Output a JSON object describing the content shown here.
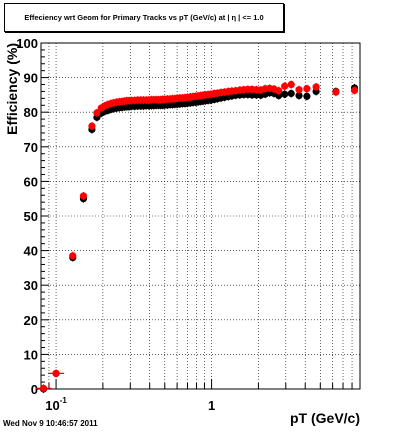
{
  "title": "Effeciency wrt Geom for Primary Tracks vs pT (GeV/c) at | η | <= 1.0",
  "timestamp": "Wed Nov  9 10:46:57 2011",
  "colors": {
    "series_black": "#000000",
    "series_red": "#ff0000",
    "grid": "#000000"
  },
  "chart_data": {
    "type": "scatter",
    "title": "Effeciency wrt Geom for Primary Tracks vs pT (GeV/c) at | η | <= 1.0",
    "xlabel": "pT (GeV/c)",
    "ylabel": "Efficiency (%)",
    "x_scale": "log",
    "xlim": [
      0.08,
      9.0
    ],
    "ylim": [
      0,
      100
    ],
    "x_tick_labels": [
      {
        "value": 0.1,
        "base": "10",
        "exp": "-1"
      },
      {
        "value": 1,
        "base": "1",
        "exp": ""
      }
    ],
    "y_ticks": [
      0,
      10,
      20,
      30,
      40,
      50,
      60,
      70,
      80,
      90,
      100
    ],
    "grid": true,
    "series": [
      {
        "color": "#000000",
        "points": [
          [
            0.083,
            0.0
          ],
          [
            0.1,
            4.5
          ],
          [
            0.128,
            38.0
          ],
          [
            0.15,
            55.0
          ],
          [
            0.17,
            75.0
          ],
          [
            0.183,
            78.5
          ],
          [
            0.195,
            79.7
          ],
          [
            0.205,
            80.2
          ],
          [
            0.215,
            80.5
          ],
          [
            0.225,
            80.8
          ],
          [
            0.235,
            81.0
          ],
          [
            0.245,
            81.2
          ],
          [
            0.255,
            81.3
          ],
          [
            0.265,
            81.4
          ],
          [
            0.275,
            81.5
          ],
          [
            0.285,
            81.6
          ],
          [
            0.295,
            81.6
          ],
          [
            0.305,
            81.7
          ],
          [
            0.32,
            81.7
          ],
          [
            0.335,
            81.8
          ],
          [
            0.35,
            81.8
          ],
          [
            0.365,
            81.8
          ],
          [
            0.38,
            81.9
          ],
          [
            0.395,
            81.9
          ],
          [
            0.41,
            81.9
          ],
          [
            0.425,
            81.9
          ],
          [
            0.44,
            82.0
          ],
          [
            0.455,
            82.0
          ],
          [
            0.47,
            82.0
          ],
          [
            0.485,
            82.0
          ],
          [
            0.5,
            82.1
          ],
          [
            0.52,
            82.1
          ],
          [
            0.54,
            82.2
          ],
          [
            0.56,
            82.2
          ],
          [
            0.58,
            82.3
          ],
          [
            0.6,
            82.3
          ],
          [
            0.625,
            82.4
          ],
          [
            0.65,
            82.5
          ],
          [
            0.675,
            82.5
          ],
          [
            0.7,
            82.6
          ],
          [
            0.73,
            82.7
          ],
          [
            0.76,
            82.8
          ],
          [
            0.79,
            82.9
          ],
          [
            0.82,
            83.0
          ],
          [
            0.85,
            83.1
          ],
          [
            0.88,
            83.2
          ],
          [
            0.91,
            83.3
          ],
          [
            0.95,
            83.4
          ],
          [
            0.99,
            83.5
          ],
          [
            1.04,
            83.7
          ],
          [
            1.09,
            83.9
          ],
          [
            1.15,
            84.1
          ],
          [
            1.21,
            84.3
          ],
          [
            1.28,
            84.5
          ],
          [
            1.35,
            84.7
          ],
          [
            1.43,
            84.9
          ],
          [
            1.52,
            85.0
          ],
          [
            1.61,
            85.1
          ],
          [
            1.71,
            85.1
          ],
          [
            1.82,
            85.0
          ],
          [
            1.94,
            85.0
          ],
          [
            2.07,
            84.9
          ],
          [
            2.21,
            85.2
          ],
          [
            2.36,
            85.6
          ],
          [
            2.52,
            85.4
          ],
          [
            2.7,
            84.8
          ],
          [
            2.95,
            85.2
          ],
          [
            3.25,
            85.4
          ],
          [
            3.65,
            84.8
          ],
          [
            4.1,
            84.6
          ],
          [
            4.7,
            86.0
          ],
          [
            6.3,
            86.0
          ],
          [
            8.3,
            87.0
          ]
        ]
      },
      {
        "color": "#ff0000",
        "points": [
          [
            0.083,
            0.2
          ],
          [
            0.1,
            4.5
          ],
          [
            0.128,
            38.5
          ],
          [
            0.15,
            55.8
          ],
          [
            0.17,
            76.0
          ],
          [
            0.183,
            79.8
          ],
          [
            0.195,
            81.2
          ],
          [
            0.205,
            81.8
          ],
          [
            0.215,
            82.2
          ],
          [
            0.225,
            82.5
          ],
          [
            0.235,
            82.7
          ],
          [
            0.245,
            82.9
          ],
          [
            0.255,
            83.0
          ],
          [
            0.265,
            83.1
          ],
          [
            0.275,
            83.2
          ],
          [
            0.285,
            83.3
          ],
          [
            0.295,
            83.3
          ],
          [
            0.305,
            83.4
          ],
          [
            0.32,
            83.4
          ],
          [
            0.335,
            83.5
          ],
          [
            0.35,
            83.5
          ],
          [
            0.365,
            83.5
          ],
          [
            0.38,
            83.5
          ],
          [
            0.395,
            83.5
          ],
          [
            0.41,
            83.6
          ],
          [
            0.425,
            83.6
          ],
          [
            0.44,
            83.6
          ],
          [
            0.455,
            83.6
          ],
          [
            0.47,
            83.6
          ],
          [
            0.485,
            83.7
          ],
          [
            0.5,
            83.7
          ],
          [
            0.52,
            83.8
          ],
          [
            0.54,
            83.8
          ],
          [
            0.56,
            83.9
          ],
          [
            0.58,
            83.9
          ],
          [
            0.6,
            84.0
          ],
          [
            0.625,
            84.1
          ],
          [
            0.65,
            84.1
          ],
          [
            0.675,
            84.2
          ],
          [
            0.7,
            84.3
          ],
          [
            0.73,
            84.4
          ],
          [
            0.76,
            84.5
          ],
          [
            0.79,
            84.6
          ],
          [
            0.82,
            84.7
          ],
          [
            0.85,
            84.8
          ],
          [
            0.88,
            84.9
          ],
          [
            0.91,
            85.0
          ],
          [
            0.95,
            85.1
          ],
          [
            0.99,
            85.2
          ],
          [
            1.04,
            85.4
          ],
          [
            1.09,
            85.5
          ],
          [
            1.15,
            85.7
          ],
          [
            1.21,
            85.8
          ],
          [
            1.28,
            86.0
          ],
          [
            1.35,
            86.1
          ],
          [
            1.43,
            86.2
          ],
          [
            1.52,
            86.4
          ],
          [
            1.61,
            86.5
          ],
          [
            1.71,
            86.6
          ],
          [
            1.82,
            86.6
          ],
          [
            1.94,
            86.5
          ],
          [
            2.07,
            86.4
          ],
          [
            2.21,
            86.8
          ],
          [
            2.36,
            86.9
          ],
          [
            2.52,
            86.7
          ],
          [
            2.7,
            86.2
          ],
          [
            2.95,
            87.5
          ],
          [
            3.25,
            88.0
          ],
          [
            3.65,
            86.5
          ],
          [
            4.1,
            86.8
          ],
          [
            4.7,
            87.3
          ],
          [
            6.3,
            85.8
          ],
          [
            8.3,
            86.3
          ]
        ]
      }
    ]
  }
}
